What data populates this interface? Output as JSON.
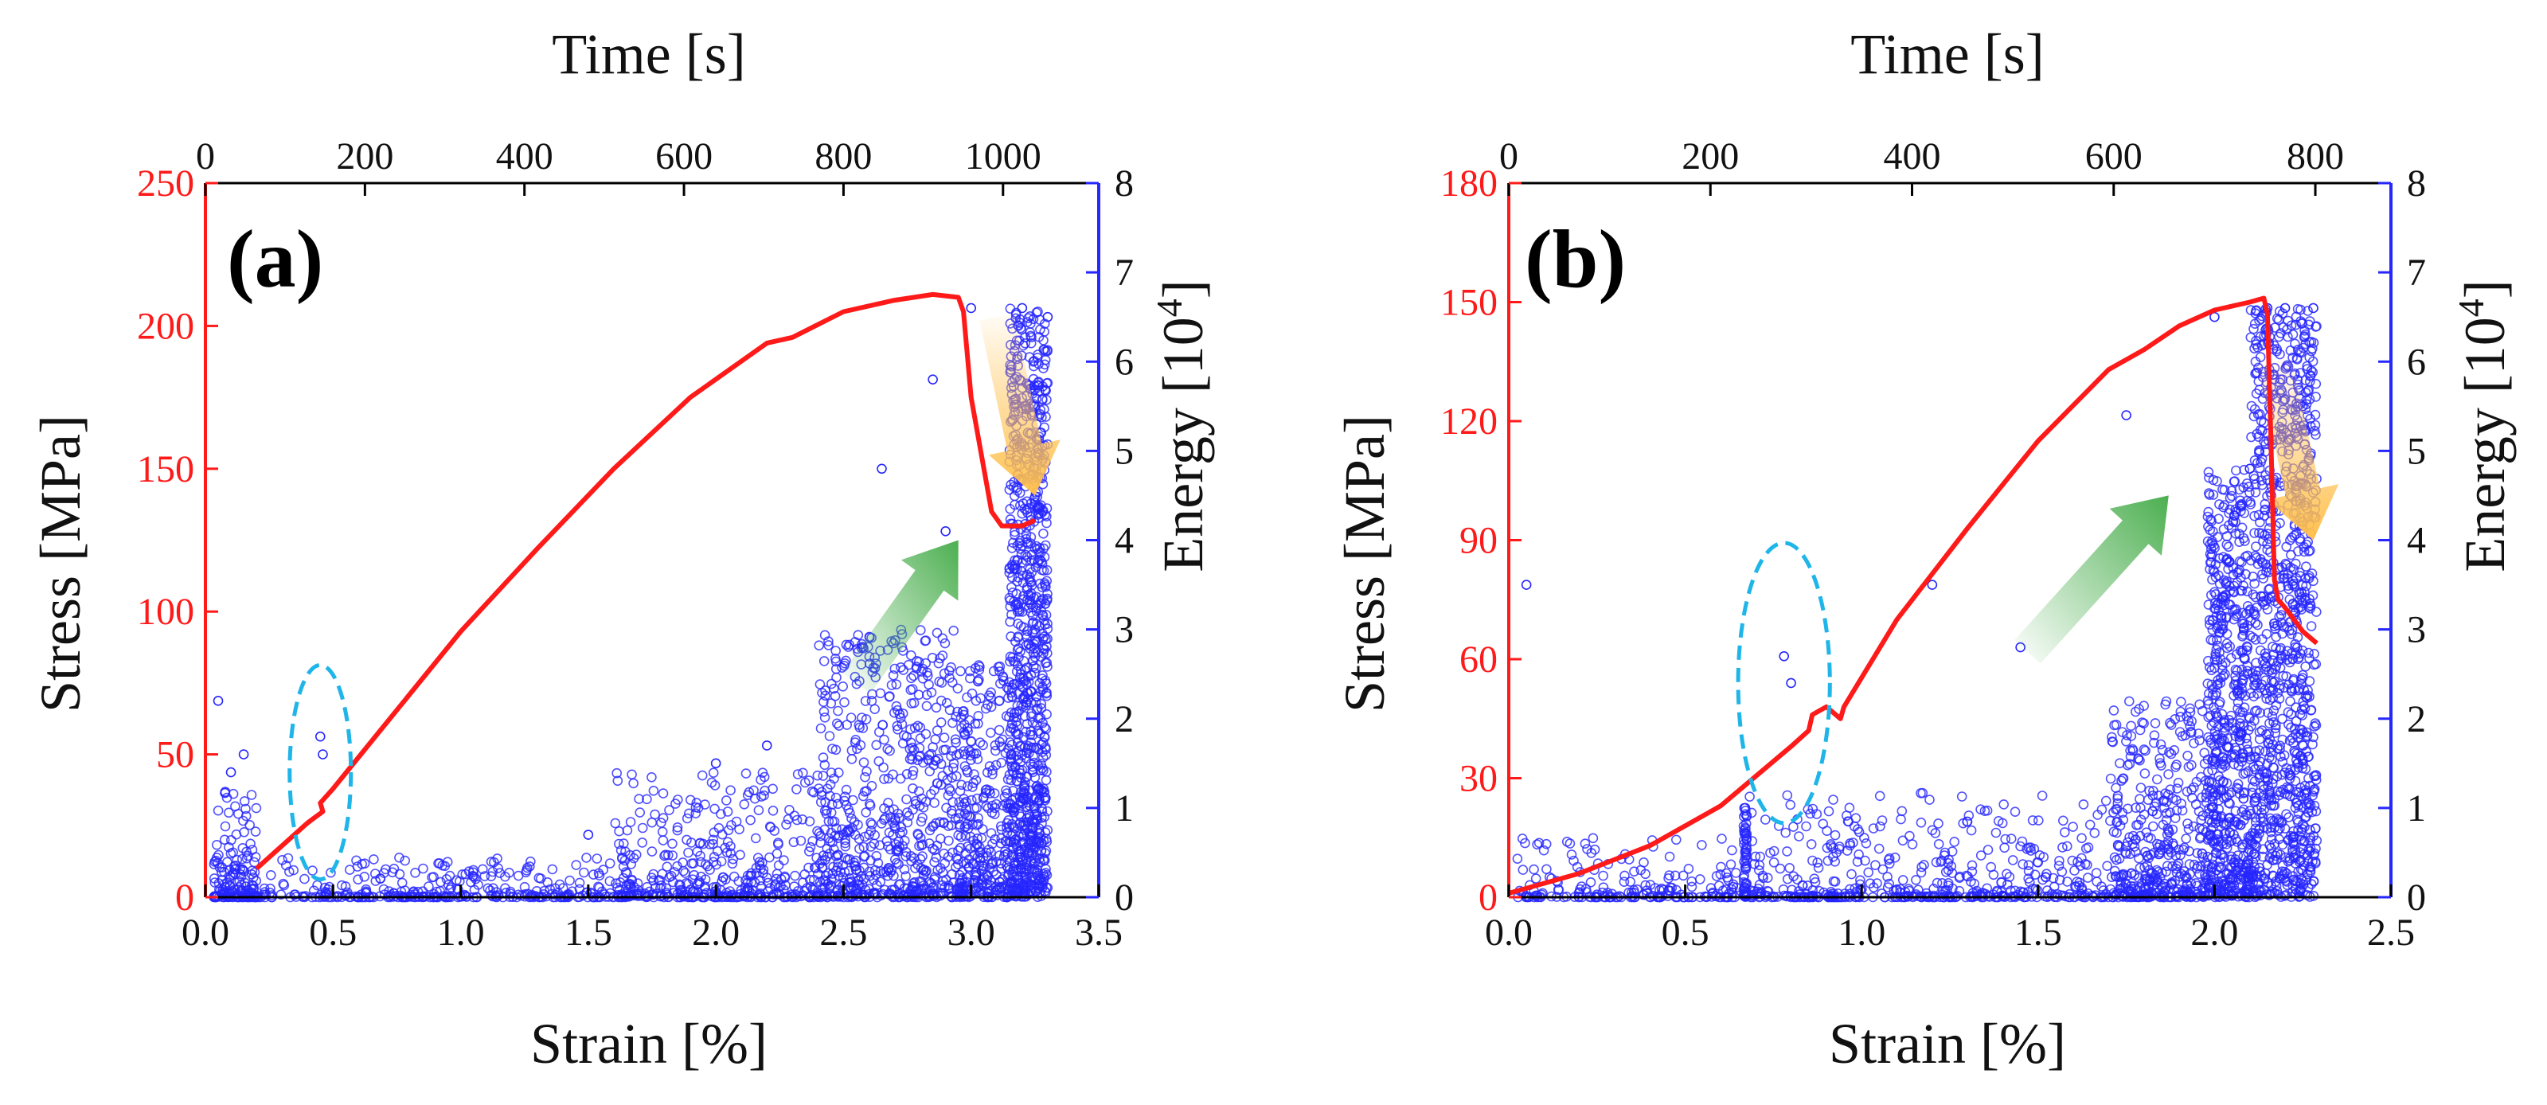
{
  "chart_data": [
    {
      "type": "line+scatter",
      "panel_label": "(a)",
      "xlabel": "Strain [%]",
      "x2label": "Time [s]",
      "ylabel": "Stress [MPa]",
      "y2label": "Energy [10",
      "y2label_exp": "4",
      "y2label_suffix": "]",
      "xlim": [
        0,
        3.5
      ],
      "x2lim": [
        0,
        1120
      ],
      "ylim": [
        0,
        250
      ],
      "y2lim": [
        0,
        8
      ],
      "xticks": [
        "0.0",
        "0.5",
        "1.0",
        "1.5",
        "2.0",
        "2.5",
        "3.0",
        "3.5"
      ],
      "x2ticks": [
        "0",
        "200",
        "400",
        "600",
        "800",
        "1000"
      ],
      "yticks": [
        "0",
        "50",
        "100",
        "150",
        "200",
        "250"
      ],
      "y2ticks": [
        "0",
        "1",
        "2",
        "3",
        "4",
        "5",
        "6",
        "7",
        "8"
      ],
      "colors": {
        "stress": "#ff1a1a",
        "energy": "#2626ff",
        "ellipse": "#1fb5e8",
        "green_arrow": "#4caf50",
        "orange_arrow": "#ffc04d"
      },
      "stress_curve": {
        "name": "Stress",
        "x": [
          0.2,
          0.3,
          0.4,
          0.43,
          0.46,
          0.45,
          0.5,
          0.7,
          1.0,
          1.3,
          1.6,
          1.9,
          2.2,
          2.3,
          2.5,
          2.7,
          2.85,
          2.95,
          2.97,
          3.0,
          3.08,
          3.12,
          3.2,
          3.25
        ],
        "y": [
          10,
          18,
          26,
          28,
          30,
          33,
          38,
          60,
          93,
          122,
          150,
          175,
          194,
          196,
          205,
          209,
          211,
          210,
          205,
          175,
          135,
          130,
          130,
          132
        ]
      },
      "energy_scatter": {
        "name": "Energy",
        "note": "dense low-level AE hits with bursts near 0.1 %, 0.45 % and 2.6–3.3 % strain",
        "sample_x": [
          0.05,
          0.1,
          0.15,
          0.45,
          0.46,
          1.5,
          2.0,
          2.2,
          2.65,
          2.85,
          2.9,
          3.0,
          3.2,
          3.25,
          3.3
        ],
        "sample_y": [
          2.2,
          1.4,
          1.6,
          1.8,
          1.6,
          0.7,
          1.5,
          1.7,
          4.8,
          5.8,
          4.1,
          6.6,
          6.6,
          5.5,
          6.5
        ]
      },
      "ellipse_center": [
        0.45,
        1.4
      ],
      "ellipse_radii": [
        0.12,
        1.2
      ],
      "green_arrow": {
        "from": [
          2.55,
          2.4
        ],
        "to": [
          2.95,
          4.0
        ]
      },
      "orange_arrow": {
        "from": [
          3.1,
          6.5
        ],
        "to": [
          3.25,
          4.5
        ]
      }
    },
    {
      "type": "line+scatter",
      "panel_label": "(b)",
      "xlabel": "Strain [%]",
      "x2label": "Time [s]",
      "ylabel": "Stress [MPa]",
      "y2label": "Energy [10",
      "y2label_exp": "4",
      "y2label_suffix": "]",
      "xlim": [
        0,
        2.5
      ],
      "x2lim": [
        0,
        875
      ],
      "ylim": [
        0,
        180
      ],
      "y2lim": [
        0,
        8
      ],
      "xticks": [
        "0.0",
        "0.5",
        "1.0",
        "1.5",
        "2.0",
        "2.5"
      ],
      "x2ticks": [
        "0",
        "200",
        "400",
        "600",
        "800"
      ],
      "yticks": [
        "0",
        "30",
        "60",
        "90",
        "120",
        "150",
        "180"
      ],
      "y2ticks": [
        "0",
        "1",
        "2",
        "3",
        "4",
        "5",
        "6",
        "7",
        "8"
      ],
      "colors": {
        "stress": "#ff1a1a",
        "energy": "#2626ff",
        "ellipse": "#1fb5e8",
        "green_arrow": "#4caf50",
        "orange_arrow": "#ffc04d"
      },
      "stress_curve": {
        "name": "Stress",
        "x": [
          0.0,
          0.2,
          0.4,
          0.6,
          0.8,
          0.85,
          0.86,
          0.9,
          0.94,
          0.95,
          1.1,
          1.3,
          1.5,
          1.7,
          1.8,
          1.9,
          2.0,
          2.1,
          2.14,
          2.15,
          2.16,
          2.17,
          2.18,
          2.2,
          2.25,
          2.29
        ],
        "y": [
          1,
          6,
          13,
          23,
          38,
          42,
          46,
          48,
          45,
          48,
          70,
          93,
          115,
          133,
          138,
          144,
          148,
          150,
          151,
          147,
          115,
          80,
          75,
          73,
          67,
          64
        ]
      },
      "energy_scatter": {
        "name": "Energy",
        "note": "sparse low-level AE hits, a column at 0.67 % strain and dense bursts around 2.0–2.3 % strain",
        "sample_x": [
          0.05,
          0.67,
          0.78,
          0.8,
          1.2,
          1.45,
          1.75,
          2.0,
          2.1,
          2.15,
          2.2,
          2.25,
          2.28
        ],
        "sample_y": [
          3.5,
          1.0,
          2.7,
          2.4,
          3.5,
          2.8,
          5.4,
          6.5,
          4.8,
          6.6,
          6.6,
          5.5,
          6.6
        ]
      },
      "ellipse_center": [
        0.78,
        2.4
      ],
      "ellipse_radii": [
        0.13,
        1.57
      ],
      "green_arrow": {
        "from": [
          1.47,
          2.75
        ],
        "to": [
          1.87,
          4.5
        ]
      },
      "orange_arrow": {
        "from": [
          2.17,
          6.0
        ],
        "to": [
          2.28,
          4.0
        ]
      }
    }
  ]
}
